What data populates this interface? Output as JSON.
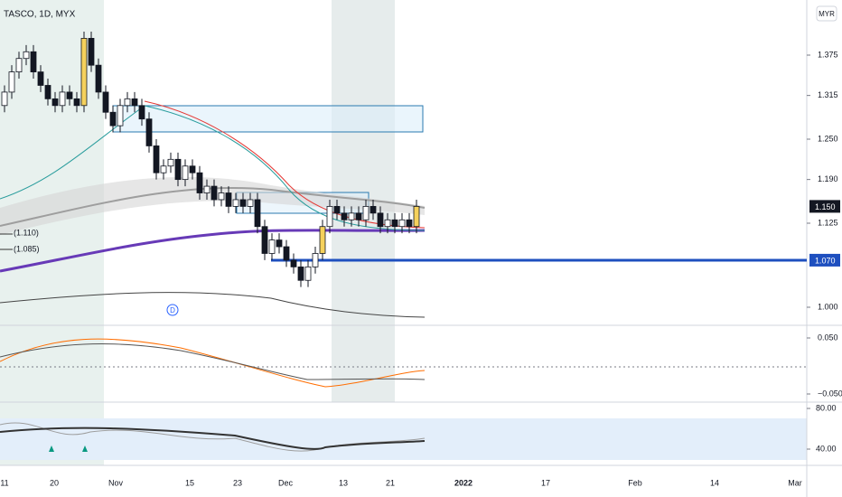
{
  "header": {
    "symbol": "TASCO, 1D, MYX",
    "currency": "MYR",
    "badge": "D"
  },
  "annotations": {
    "level_a": "(1.110)",
    "level_b": "(1.085)"
  },
  "price_axis": {
    "ticks": [
      1.375,
      1.315,
      {
        "value": 1.25,
        "label": "1.250"
      },
      {
        "value": 1.19,
        "label": "1.190"
      },
      1.125,
      {
        "value": 1.0,
        "label": "1.000"
      }
    ],
    "last_price": {
      "value": 1.15,
      "label": "1.150"
    },
    "support": {
      "value": 1.07,
      "label": "1.070"
    }
  },
  "macd_axis": {
    "ticks": [
      0.05,
      -0.05
    ],
    "tick_labels": [
      "0.050",
      "−0.050"
    ]
  },
  "rsi_axis": {
    "ticks": [
      {
        "value": 80,
        "label": "80.00"
      },
      {
        "value": 40,
        "label": "40.00"
      }
    ]
  },
  "time_axis": {
    "labels": [
      "11",
      "20",
      "Nov",
      "15",
      "23",
      "Dec",
      "13",
      "21",
      "2022",
      "17",
      "Feb",
      "14",
      "Mar"
    ]
  },
  "candles": {
    "open": [
      1.3,
      1.32,
      1.35,
      1.37,
      1.38,
      1.35,
      1.33,
      1.31,
      1.3,
      1.32,
      1.31,
      1.3,
      1.4,
      1.36,
      1.32,
      1.29,
      1.27,
      1.3,
      1.31,
      1.3,
      1.28,
      1.24,
      1.2,
      1.21,
      1.22,
      1.19,
      1.21,
      1.2,
      1.17,
      1.18,
      1.16,
      1.17,
      1.15,
      1.16,
      1.15,
      1.16,
      1.12,
      1.08,
      1.1,
      1.09,
      1.07,
      1.06,
      1.04,
      1.06,
      1.08,
      1.12,
      1.15,
      1.14,
      1.13,
      1.14,
      1.13,
      1.15,
      1.14,
      1.12,
      1.13,
      1.12,
      1.13,
      1.12
    ],
    "high": [
      1.33,
      1.36,
      1.38,
      1.39,
      1.39,
      1.36,
      1.34,
      1.32,
      1.33,
      1.33,
      1.32,
      1.41,
      1.41,
      1.37,
      1.33,
      1.3,
      1.31,
      1.32,
      1.32,
      1.31,
      1.29,
      1.25,
      1.22,
      1.23,
      1.23,
      1.22,
      1.22,
      1.21,
      1.19,
      1.19,
      1.18,
      1.18,
      1.17,
      1.17,
      1.17,
      1.17,
      1.13,
      1.11,
      1.11,
      1.1,
      1.08,
      1.07,
      1.07,
      1.09,
      1.13,
      1.16,
      1.16,
      1.15,
      1.15,
      1.15,
      1.16,
      1.16,
      1.15,
      1.14,
      1.14,
      1.14,
      1.14,
      1.16
    ],
    "low": [
      1.29,
      1.31,
      1.34,
      1.36,
      1.34,
      1.32,
      1.3,
      1.29,
      1.29,
      1.3,
      1.29,
      1.29,
      1.35,
      1.31,
      1.28,
      1.26,
      1.26,
      1.29,
      1.29,
      1.27,
      1.23,
      1.19,
      1.19,
      1.2,
      1.18,
      1.18,
      1.19,
      1.16,
      1.16,
      1.15,
      1.15,
      1.14,
      1.14,
      1.14,
      1.14,
      1.11,
      1.07,
      1.07,
      1.08,
      1.06,
      1.05,
      1.03,
      1.03,
      1.05,
      1.07,
      1.11,
      1.13,
      1.12,
      1.12,
      1.12,
      1.12,
      1.13,
      1.11,
      1.11,
      1.11,
      1.11,
      1.11,
      1.11
    ],
    "close": [
      1.32,
      1.35,
      1.37,
      1.38,
      1.35,
      1.33,
      1.31,
      1.3,
      1.32,
      1.31,
      1.3,
      1.4,
      1.36,
      1.32,
      1.29,
      1.27,
      1.3,
      1.31,
      1.3,
      1.28,
      1.24,
      1.2,
      1.21,
      1.22,
      1.19,
      1.21,
      1.2,
      1.17,
      1.18,
      1.16,
      1.17,
      1.15,
      1.16,
      1.15,
      1.16,
      1.12,
      1.08,
      1.1,
      1.09,
      1.07,
      1.06,
      1.04,
      1.06,
      1.08,
      1.12,
      1.15,
      1.14,
      1.13,
      1.14,
      1.13,
      1.15,
      1.14,
      1.12,
      1.13,
      1.12,
      1.13,
      1.12,
      1.15
    ]
  }
}
